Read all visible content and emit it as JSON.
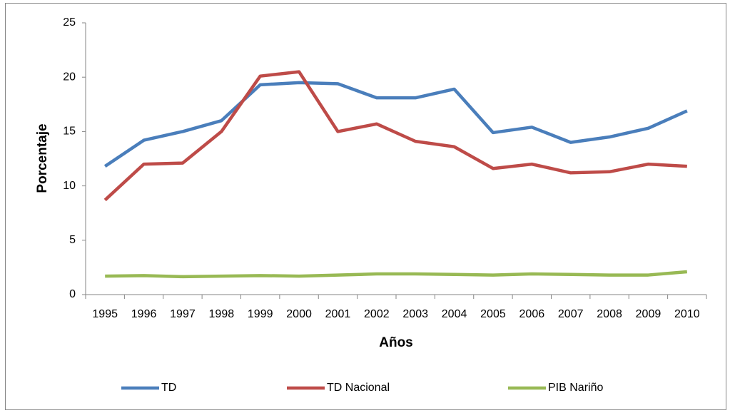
{
  "chart_data": {
    "type": "line",
    "x_label": "Años",
    "y_label": "Porcentaje",
    "categories": [
      "1995",
      "1996",
      "1997",
      "1998",
      "1999",
      "2000",
      "2001",
      "2002",
      "2003",
      "2004",
      "2005",
      "2006",
      "2007",
      "2008",
      "2009",
      "2010"
    ],
    "series": [
      {
        "name": "TD",
        "color": "#4a7ebb",
        "values": [
          11.8,
          14.2,
          15.0,
          16.0,
          19.3,
          19.5,
          19.4,
          18.1,
          18.1,
          18.9,
          14.9,
          15.4,
          14.0,
          14.5,
          15.3,
          16.9
        ]
      },
      {
        "name": "TD Nacional",
        "color": "#be4b48",
        "values": [
          8.7,
          12.0,
          12.1,
          15.0,
          20.1,
          20.5,
          15.0,
          15.7,
          14.1,
          13.6,
          11.6,
          12.0,
          11.2,
          11.3,
          12.0,
          11.8
        ]
      },
      {
        "name": "PIB Nariño",
        "color": "#98b954",
        "values": [
          1.7,
          1.75,
          1.65,
          1.7,
          1.75,
          1.7,
          1.8,
          1.9,
          1.9,
          1.85,
          1.8,
          1.9,
          1.85,
          1.8,
          1.8,
          2.1
        ]
      }
    ],
    "ylim": [
      0,
      25
    ],
    "yticks": [
      0,
      5,
      10,
      15,
      20,
      25
    ],
    "grid": false,
    "legend": "bottom"
  }
}
